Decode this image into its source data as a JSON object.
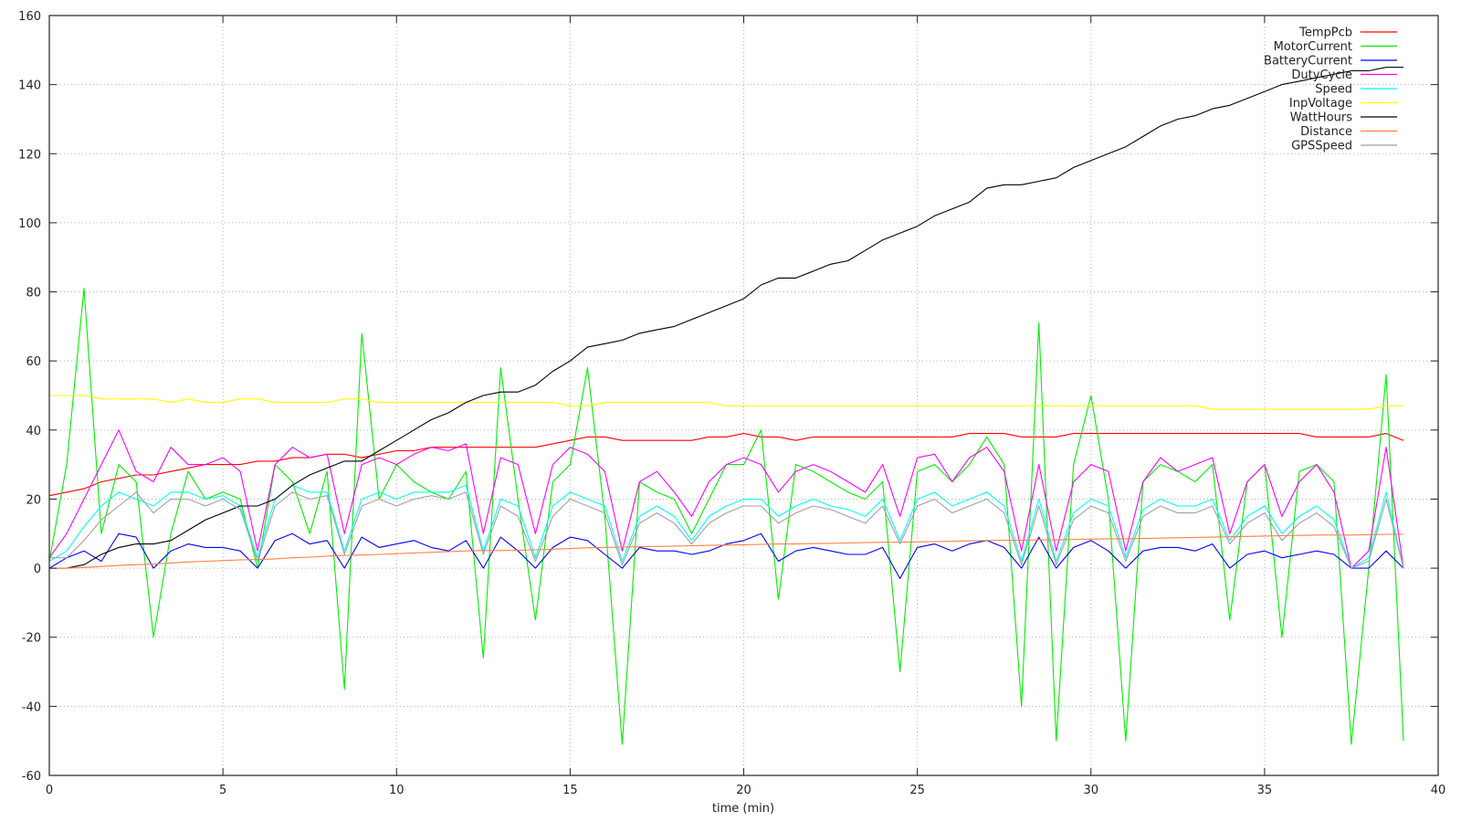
{
  "chart_data": {
    "type": "line",
    "title": "",
    "xlabel": "time (min)",
    "ylabel": "",
    "xlim": [
      0,
      40
    ],
    "ylim": [
      -60,
      160
    ],
    "xticks": [
      0,
      5,
      10,
      15,
      20,
      25,
      30,
      35,
      40
    ],
    "yticks": [
      -60,
      -40,
      -20,
      0,
      20,
      40,
      60,
      80,
      100,
      120,
      140,
      160
    ],
    "grid": true,
    "legend_position": "top-right",
    "x": [
      0,
      0.5,
      1,
      1.5,
      2,
      2.5,
      3,
      3.5,
      4,
      4.5,
      5,
      5.5,
      6,
      6.5,
      7,
      7.5,
      8,
      8.5,
      9,
      9.5,
      10,
      10.5,
      11,
      11.5,
      12,
      12.5,
      13,
      13.5,
      14,
      14.5,
      15,
      15.5,
      16,
      16.5,
      17,
      17.5,
      18,
      18.5,
      19,
      19.5,
      20,
      20.5,
      21,
      21.5,
      22,
      22.5,
      23,
      23.5,
      24,
      24.5,
      25,
      25.5,
      26,
      26.5,
      27,
      27.5,
      28,
      28.5,
      29,
      29.5,
      30,
      30.5,
      31,
      31.5,
      32,
      32.5,
      33,
      33.5,
      34,
      34.5,
      35,
      35.5,
      36,
      36.5,
      37,
      37.5,
      38,
      38.5,
      39
    ],
    "series": [
      {
        "name": "TempPcb",
        "color": "#ff0000",
        "values": [
          21,
          22,
          23,
          25,
          26,
          27,
          27,
          28,
          29,
          30,
          30,
          30,
          31,
          31,
          32,
          32,
          33,
          33,
          32,
          33,
          34,
          34,
          35,
          35,
          35,
          35,
          35,
          35,
          35,
          36,
          37,
          38,
          38,
          37,
          37,
          37,
          37,
          37,
          38,
          38,
          39,
          38,
          38,
          37,
          38,
          38,
          38,
          38,
          38,
          38,
          38,
          38,
          38,
          39,
          39,
          39,
          38,
          38,
          38,
          39,
          39,
          39,
          39,
          39,
          39,
          39,
          39,
          39,
          39,
          39,
          39,
          39,
          39,
          38,
          38,
          38,
          38,
          39,
          37
        ]
      },
      {
        "name": "MotorCurrent",
        "color": "#00ee00",
        "values": [
          2,
          30,
          81,
          10,
          30,
          25,
          -20,
          10,
          28,
          20,
          22,
          20,
          0,
          30,
          25,
          10,
          28,
          -35,
          68,
          20,
          30,
          25,
          22,
          20,
          28,
          -26,
          58,
          20,
          -15,
          25,
          30,
          58,
          15,
          -51,
          25,
          22,
          20,
          10,
          20,
          30,
          30,
          40,
          -9,
          30,
          28,
          25,
          22,
          20,
          25,
          -30,
          28,
          30,
          25,
          30,
          38,
          30,
          -40,
          71,
          -50,
          30,
          50,
          20,
          -50,
          25,
          30,
          28,
          25,
          30,
          -15,
          25,
          30,
          -20,
          28,
          30,
          25,
          -51,
          0,
          56,
          -50
        ]
      },
      {
        "name": "BatteryCurrent",
        "color": "#0000ff",
        "values": [
          0,
          3,
          5,
          2,
          10,
          9,
          0,
          5,
          7,
          6,
          6,
          5,
          0,
          8,
          10,
          7,
          8,
          0,
          9,
          6,
          7,
          8,
          6,
          5,
          8,
          0,
          9,
          5,
          0,
          6,
          9,
          8,
          4,
          0,
          6,
          5,
          5,
          4,
          5,
          7,
          8,
          10,
          2,
          5,
          6,
          5,
          4,
          4,
          6,
          -3,
          6,
          7,
          5,
          7,
          8,
          6,
          0,
          9,
          0,
          6,
          8,
          5,
          0,
          5,
          6,
          6,
          5,
          7,
          0,
          4,
          5,
          3,
          4,
          5,
          4,
          0,
          0,
          5,
          0
        ]
      },
      {
        "name": "DutyCycle",
        "color": "#ff00ff",
        "values": [
          3,
          10,
          20,
          30,
          40,
          28,
          25,
          35,
          30,
          30,
          32,
          28,
          5,
          30,
          35,
          32,
          33,
          10,
          30,
          32,
          30,
          33,
          35,
          34,
          36,
          10,
          32,
          30,
          10,
          30,
          35,
          33,
          28,
          5,
          25,
          28,
          22,
          15,
          25,
          30,
          32,
          30,
          22,
          28,
          30,
          28,
          25,
          22,
          30,
          15,
          32,
          33,
          25,
          32,
          35,
          28,
          5,
          30,
          5,
          25,
          30,
          28,
          5,
          25,
          32,
          28,
          30,
          32,
          10,
          25,
          30,
          15,
          25,
          30,
          22,
          0,
          5,
          35,
          0
        ]
      },
      {
        "name": "Speed",
        "color": "#00ffff",
        "values": [
          2,
          5,
          12,
          18,
          22,
          20,
          18,
          22,
          22,
          20,
          21,
          18,
          3,
          20,
          24,
          22,
          22,
          5,
          20,
          22,
          20,
          22,
          22,
          22,
          24,
          5,
          20,
          18,
          3,
          18,
          22,
          20,
          18,
          2,
          15,
          18,
          15,
          8,
          15,
          18,
          20,
          20,
          15,
          18,
          20,
          18,
          17,
          15,
          20,
          8,
          20,
          22,
          18,
          20,
          22,
          18,
          2,
          20,
          2,
          16,
          20,
          18,
          3,
          17,
          20,
          18,
          18,
          20,
          8,
          15,
          18,
          10,
          15,
          18,
          14,
          0,
          3,
          22,
          0
        ]
      },
      {
        "name": "InpVoltage",
        "color": "#ffff00",
        "values": [
          50,
          50,
          50,
          49,
          49,
          49,
          49,
          48,
          49,
          48,
          48,
          49,
          49,
          48,
          48,
          48,
          48,
          49,
          49,
          48,
          48,
          48,
          48,
          48,
          48,
          48,
          48,
          48,
          48,
          48,
          47,
          47,
          48,
          48,
          48,
          48,
          48,
          48,
          48,
          47,
          47,
          47,
          47,
          47,
          47,
          47,
          47,
          47,
          47,
          47,
          47,
          47,
          47,
          47,
          47,
          47,
          47,
          47,
          47,
          47,
          47,
          47,
          47,
          47,
          47,
          47,
          47,
          46,
          46,
          46,
          46,
          46,
          46,
          46,
          46,
          46,
          46,
          47,
          47
        ]
      },
      {
        "name": "WattHours",
        "color": "#000000",
        "values": [
          0,
          0,
          1,
          4,
          6,
          7,
          7,
          8,
          11,
          14,
          16,
          18,
          18,
          20,
          24,
          27,
          29,
          31,
          31,
          34,
          37,
          40,
          43,
          45,
          48,
          50,
          51,
          51,
          53,
          57,
          60,
          64,
          65,
          66,
          68,
          69,
          70,
          72,
          74,
          76,
          78,
          82,
          84,
          84,
          86,
          88,
          89,
          92,
          95,
          97,
          99,
          102,
          104,
          106,
          110,
          111,
          111,
          112,
          113,
          116,
          118,
          120,
          122,
          125,
          128,
          130,
          131,
          133,
          134,
          136,
          138,
          140,
          141,
          142,
          143,
          144,
          144,
          145,
          145
        ]
      },
      {
        "name": "Distance",
        "color": "#ff8040",
        "values": [
          0,
          0,
          0.2,
          0.5,
          0.8,
          1,
          1.2,
          1.5,
          1.8,
          2,
          2.2,
          2.4,
          2.5,
          2.7,
          3,
          3.2,
          3.5,
          3.7,
          3.8,
          4,
          4.2,
          4.4,
          4.6,
          4.8,
          5,
          5.1,
          5.1,
          5.2,
          5.3,
          5.5,
          5.7,
          5.9,
          6,
          6.1,
          6.2,
          6.3,
          6.4,
          6.5,
          6.6,
          6.7,
          6.8,
          6.9,
          7,
          7,
          7.1,
          7.2,
          7.3,
          7.4,
          7.5,
          7.5,
          7.6,
          7.7,
          7.8,
          7.9,
          8,
          8.1,
          8.1,
          8.2,
          8.2,
          8.3,
          8.4,
          8.5,
          8.5,
          8.6,
          8.7,
          8.8,
          8.9,
          9,
          9.1,
          9.2,
          9.3,
          9.4,
          9.5,
          9.6,
          9.6,
          9.6,
          9.7,
          9.8,
          9.8
        ]
      },
      {
        "name": "GPSSpeed",
        "color": "#a0a0a0",
        "values": [
          3,
          3,
          8,
          14,
          18,
          22,
          16,
          20,
          20,
          18,
          20,
          17,
          2,
          18,
          22,
          20,
          21,
          4,
          18,
          20,
          18,
          20,
          21,
          20,
          22,
          4,
          18,
          15,
          2,
          15,
          20,
          18,
          16,
          1,
          13,
          16,
          13,
          7,
          13,
          16,
          18,
          18,
          13,
          16,
          18,
          17,
          15,
          13,
          18,
          7,
          18,
          20,
          16,
          18,
          20,
          16,
          1,
          18,
          1,
          14,
          18,
          16,
          2,
          15,
          18,
          16,
          16,
          18,
          7,
          13,
          16,
          8,
          13,
          16,
          12,
          0,
          2,
          20,
          0
        ]
      }
    ]
  }
}
